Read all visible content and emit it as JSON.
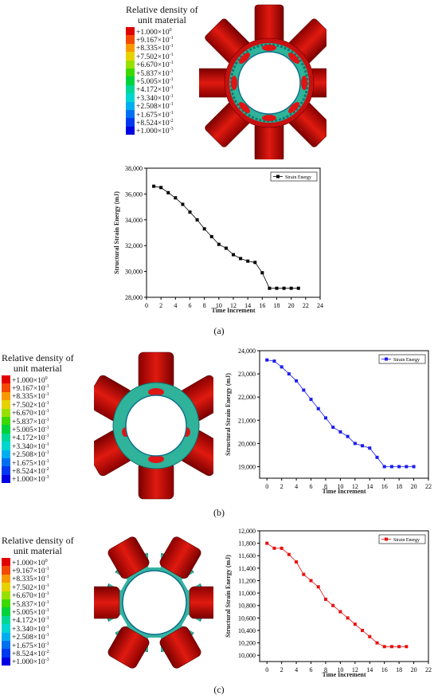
{
  "legend": {
    "title_line1": "Relative density  of",
    "title_line2": "unit material",
    "entries": [
      {
        "mant": "+1.000×10",
        "exp": "0",
        "color": "#e10000"
      },
      {
        "mant": "+9.167×10",
        "exp": "-1",
        "color": "#f24a00"
      },
      {
        "mant": "+8.335×10",
        "exp": "-1",
        "color": "#f79a00"
      },
      {
        "mant": "+7.502×10",
        "exp": "-1",
        "color": "#e6d200"
      },
      {
        "mant": "+6.670×10",
        "exp": "-1",
        "color": "#99e000"
      },
      {
        "mant": "+5.837×10",
        "exp": "-1",
        "color": "#3cd800"
      },
      {
        "mant": "+5.005×10",
        "exp": "-1",
        "color": "#00d23c"
      },
      {
        "mant": "+4.172×10",
        "exp": "-1",
        "color": "#00d696"
      },
      {
        "mant": "+3.340×10",
        "exp": "-1",
        "color": "#00d6d0"
      },
      {
        "mant": "+2.508×10",
        "exp": "-1",
        "color": "#00aef0"
      },
      {
        "mant": "+1.675×10",
        "exp": "-1",
        "color": "#0070f0"
      },
      {
        "mant": "+8.524×10",
        "exp": "-2",
        "color": "#0038ee"
      },
      {
        "mant": "+1.000×10",
        "exp": "-3",
        "color": "#0000e0"
      }
    ]
  },
  "captions": {
    "a": "(a)",
    "b": "(b)",
    "c": "(c)"
  },
  "chart_data": [
    {
      "type": "line",
      "panel": "a",
      "xlabel": "Time Increment",
      "ylabel": "Structural Strain Energy (mJ)",
      "legend_label": "Strain Energy",
      "color": "#000000",
      "xlim": [
        0,
        24
      ],
      "xticks": [
        0,
        2,
        4,
        6,
        8,
        10,
        12,
        14,
        16,
        18,
        20,
        22,
        24
      ],
      "ylim": [
        28000,
        38000
      ],
      "yticks": [
        28000,
        30000,
        32000,
        34000,
        36000,
        38000
      ],
      "ytick_labels": [
        "28,000",
        "30,000",
        "32,000",
        "34,000",
        "36,000",
        "38,000"
      ],
      "x": [
        1,
        2,
        3,
        4,
        5,
        6,
        7,
        8,
        9,
        10,
        11,
        12,
        13,
        14,
        15,
        16,
        17,
        18,
        19,
        20,
        21
      ],
      "y": [
        36600,
        36500,
        36100,
        35700,
        35200,
        34600,
        34000,
        33300,
        32700,
        32100,
        31800,
        31300,
        31000,
        30800,
        30700,
        29900,
        28700,
        28700,
        28700,
        28700,
        28700
      ]
    },
    {
      "type": "line",
      "panel": "b",
      "xlabel": "Time Increment",
      "ylabel": "Structural Strain Energy (mJ)",
      "legend_label": "Strain Energy",
      "color": "#1c1cf0",
      "xlim": [
        -1,
        22
      ],
      "xticks": [
        0,
        2,
        4,
        6,
        8,
        10,
        12,
        14,
        16,
        18,
        20,
        22
      ],
      "ylim": [
        18500,
        24000
      ],
      "yticks": [
        19000,
        20000,
        21000,
        22000,
        23000,
        24000
      ],
      "ytick_labels": [
        "19,000",
        "20,000",
        "21,000",
        "22,000",
        "23,000",
        "24,000"
      ],
      "x": [
        0,
        1,
        2,
        3,
        4,
        5,
        6,
        7,
        8,
        9,
        10,
        11,
        12,
        13,
        14,
        15,
        16,
        17,
        18,
        19,
        20
      ],
      "y": [
        23600,
        23550,
        23300,
        23000,
        22700,
        22300,
        21900,
        21500,
        21100,
        20700,
        20500,
        20300,
        20000,
        19900,
        19800,
        19400,
        19000,
        19000,
        19000,
        19000,
        19000
      ]
    },
    {
      "type": "line",
      "panel": "c",
      "xlabel": "Time Increment",
      "ylabel": "Structural Strain Energy (mJ)",
      "legend_label": "Strain Energy",
      "color": "#e81010",
      "xlim": [
        -1,
        22
      ],
      "xticks": [
        0,
        2,
        4,
        6,
        8,
        10,
        12,
        14,
        16,
        18,
        20,
        22
      ],
      "ylim": [
        9900,
        12000
      ],
      "yticks": [
        10000,
        10200,
        10400,
        10600,
        10800,
        11000,
        11200,
        11400,
        11600,
        11800,
        12000
      ],
      "ytick_labels": [
        "10,000",
        "10,200",
        "10,400",
        "10,600",
        "10,800",
        "11,000",
        "11,200",
        "11,400",
        "11,600",
        "11,800",
        "12,000"
      ],
      "x": [
        0,
        1,
        2,
        3,
        4,
        5,
        6,
        7,
        8,
        9,
        10,
        11,
        12,
        13,
        14,
        15,
        16,
        17,
        18,
        19
      ],
      "y": [
        11800,
        11720,
        11720,
        11620,
        11500,
        11300,
        11200,
        11100,
        10900,
        10800,
        10700,
        10600,
        10500,
        10400,
        10300,
        10200,
        10140,
        10140,
        10140,
        10140
      ]
    }
  ]
}
